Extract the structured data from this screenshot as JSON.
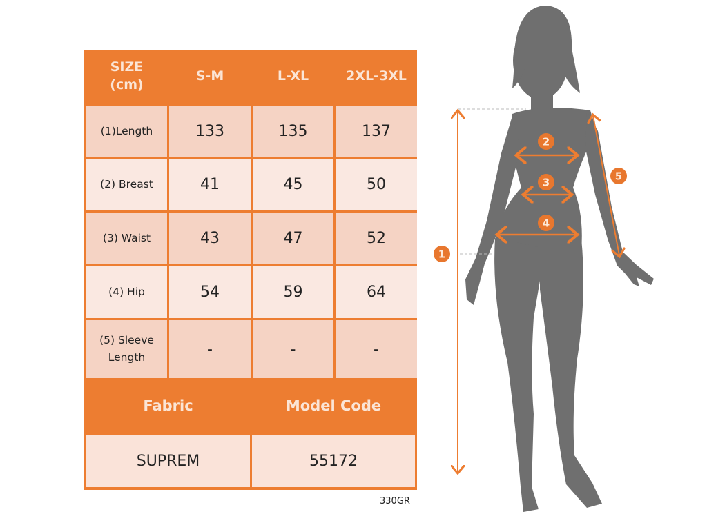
{
  "size_table": {
    "header": [
      "SIZE\n(cm)",
      "S-M",
      "L-XL",
      "2XL-3XL"
    ],
    "rows": [
      {
        "label": "(1)Length",
        "values": [
          "133",
          "135",
          "137"
        ]
      },
      {
        "label": "(2) Breast",
        "values": [
          "41",
          "45",
          "50"
        ]
      },
      {
        "label": "(3) Waist",
        "values": [
          "43",
          "47",
          "52"
        ]
      },
      {
        "label": "(4) Hip",
        "values": [
          "54",
          "59",
          "64"
        ]
      },
      {
        "label": "(5) Sleeve\nLength",
        "values": [
          "-",
          "-",
          "-"
        ]
      }
    ]
  },
  "product_info": {
    "headers": [
      "Fabric",
      "Model Code"
    ],
    "values": [
      "SUPREM",
      "55172"
    ]
  },
  "weight_note": "330GR",
  "figure": {
    "markers": [
      "1",
      "2",
      "3",
      "4",
      "5"
    ]
  },
  "colors": {
    "accent": "#ed7d31",
    "header_text": "#fbe5d6",
    "row_dark": "#f5d3c4",
    "row_light": "#fae8e1",
    "silhouette": "#6f6f6f"
  }
}
